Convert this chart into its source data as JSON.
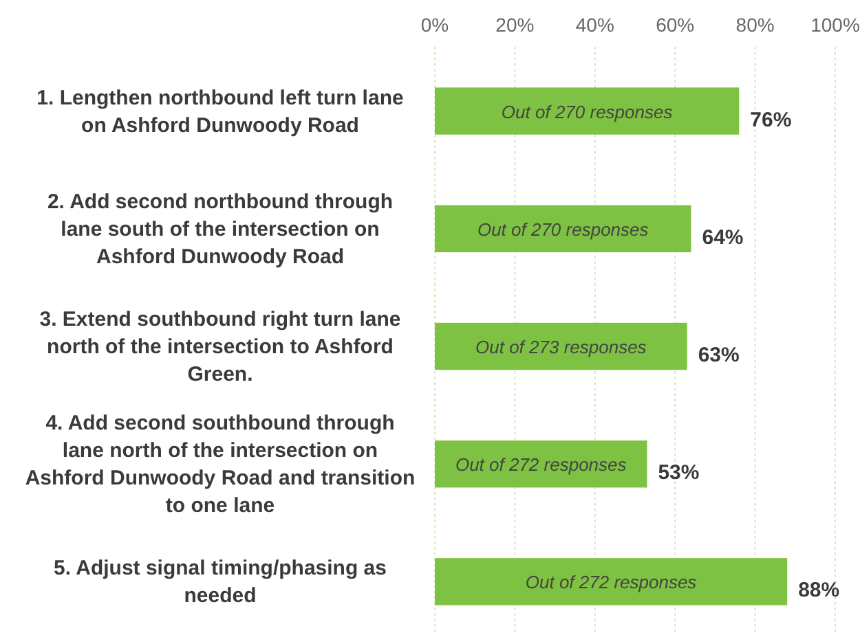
{
  "chart_data": {
    "type": "bar",
    "orientation": "horizontal",
    "categories": [
      "1. Lengthen northbound left turn lane on Ashford Dunwoody Road",
      "2. Add second northbound through lane south of the intersection on Ashford Dunwoody Road",
      "3. Extend southbound right turn lane north of the intersection to Ashford Green.",
      "4. Add second southbound through lane north of the intersection on Ashford Dunwoody Road and transition to one lane",
      "5. Adjust signal timing/phasing as needed"
    ],
    "values": [
      76,
      64,
      63,
      53,
      88
    ],
    "color": "#7dc242",
    "value_labels": [
      "76%",
      "64%",
      "63%",
      "53%",
      "88%"
    ],
    "annotations": [
      "Out of 270 responses",
      "Out of 270 responses",
      "Out of 273 responses",
      "Out of 272 responses",
      "Out of 272 responses"
    ],
    "xlim": [
      0,
      100
    ],
    "xticks": [
      {
        "value": 0,
        "label": "0%"
      },
      {
        "value": 20,
        "label": "20%"
      },
      {
        "value": 40,
        "label": "40%"
      },
      {
        "value": 60,
        "label": "60%"
      },
      {
        "value": 80,
        "label": "80%"
      },
      {
        "value": 100,
        "label": "100%"
      }
    ],
    "grid": "x"
  }
}
